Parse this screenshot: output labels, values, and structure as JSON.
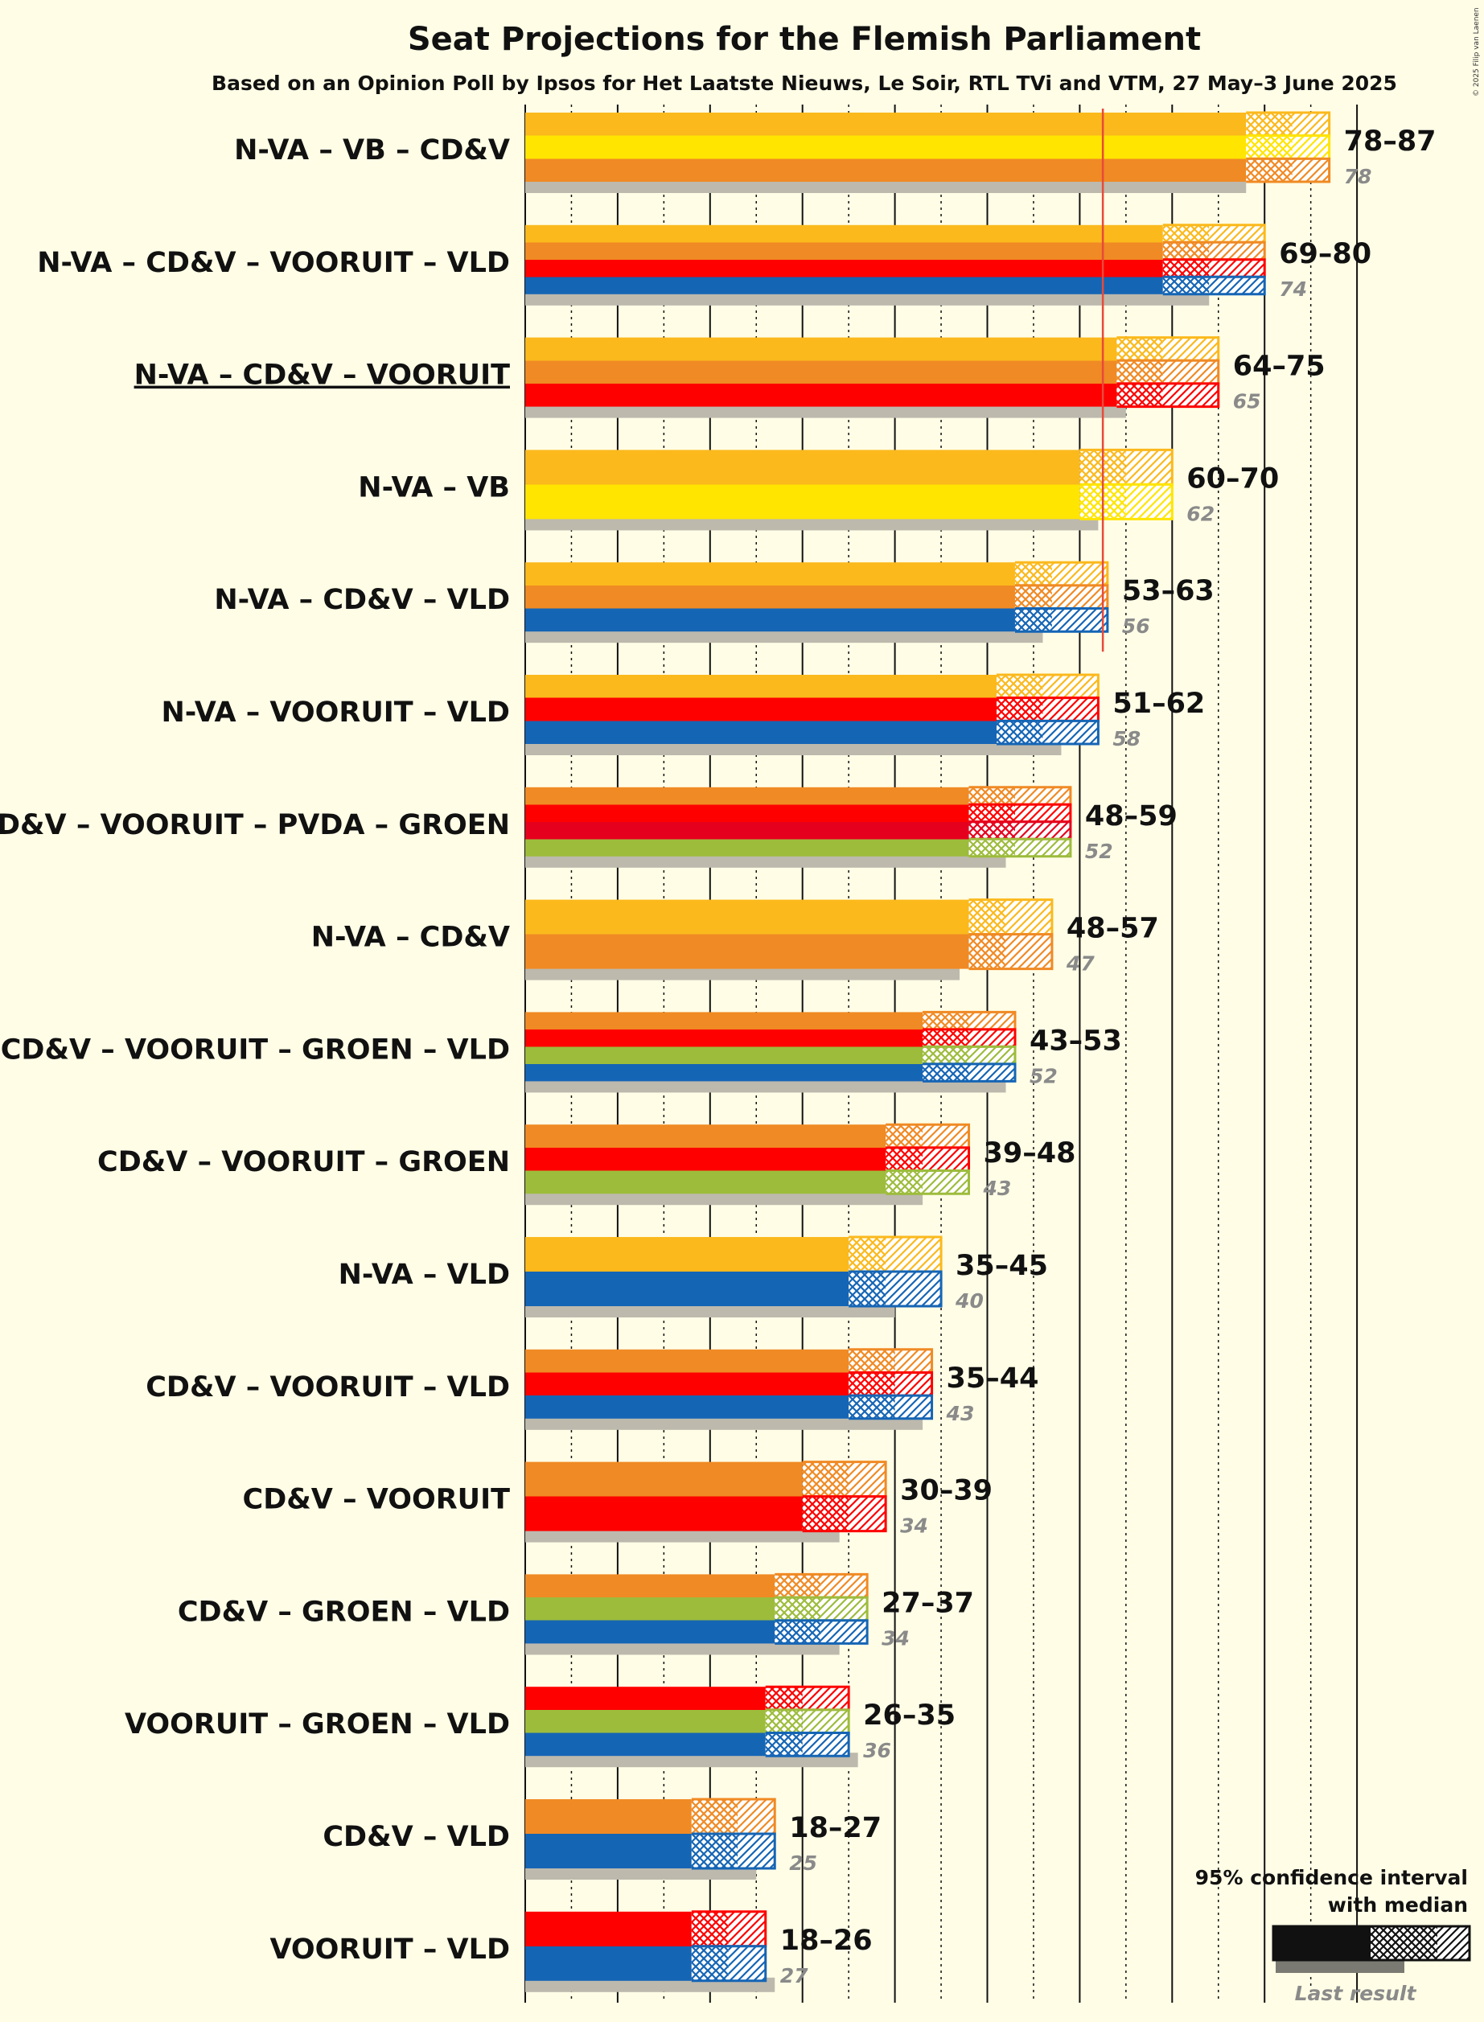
{
  "copyright": "© 2025 Filip van Laenen",
  "colors": {
    "background": "#fffde6",
    "N-VA": "#fbb91c",
    "VB": "#ffe500",
    "CD&V": "#f08a24",
    "VOORUIT": "#ff0000",
    "VLD": "#1565b5",
    "PVDA": "#e5001d",
    "GROEN": "#9dbc3c",
    "last_result": "#bdb9ad",
    "majority_line": "#e84a3a"
  },
  "legend": {
    "line1": "95% confidence interval",
    "line2": "with median",
    "last_result_label": "Last result"
  },
  "chart_data": {
    "type": "bar",
    "title": "Seat Projections for the Flemish Parliament",
    "subtitle": "Based on an Opinion Poll by Ipsos for Het Laatste Nieuws, Le Soir, RTL TVi and VTM, 27 May–3 June 2025",
    "x_range": [
      0,
      98
    ],
    "majority": 63,
    "grid_major_every": 10,
    "grid_minor_every": 5,
    "rows": [
      {
        "label": "N-VA – VB – CD&V",
        "parties": [
          "N-VA",
          "VB",
          "CD&V"
        ],
        "low": 78,
        "median": 83,
        "high": 87,
        "range_text": "78–87",
        "last": 78,
        "last_text": "78",
        "underline": false
      },
      {
        "label": "N-VA – CD&V – VOORUIT – VLD",
        "parties": [
          "N-VA",
          "CD&V",
          "VOORUIT",
          "VLD"
        ],
        "low": 69,
        "median": 74,
        "high": 80,
        "range_text": "69–80",
        "last": 74,
        "last_text": "74",
        "underline": false
      },
      {
        "label": "N-VA – CD&V – VOORUIT",
        "parties": [
          "N-VA",
          "CD&V",
          "VOORUIT"
        ],
        "low": 64,
        "median": 69,
        "high": 75,
        "range_text": "64–75",
        "last": 65,
        "last_text": "65",
        "underline": true
      },
      {
        "label": "N-VA – VB",
        "parties": [
          "N-VA",
          "VB"
        ],
        "low": 60,
        "median": 65,
        "high": 70,
        "range_text": "60–70",
        "last": 62,
        "last_text": "62",
        "underline": false
      },
      {
        "label": "N-VA – CD&V – VLD",
        "parties": [
          "N-VA",
          "CD&V",
          "VLD"
        ],
        "low": 53,
        "median": 57,
        "high": 63,
        "range_text": "53–63",
        "last": 56,
        "last_text": "56",
        "underline": false
      },
      {
        "label": "N-VA – VOORUIT – VLD",
        "parties": [
          "N-VA",
          "VOORUIT",
          "VLD"
        ],
        "low": 51,
        "median": 56,
        "high": 62,
        "range_text": "51–62",
        "last": 58,
        "last_text": "58",
        "underline": false
      },
      {
        "label": "CD&V – VOORUIT – PVDA – GROEN",
        "parties": [
          "CD&V",
          "VOORUIT",
          "PVDA",
          "GROEN"
        ],
        "low": 48,
        "median": 53,
        "high": 59,
        "range_text": "48–59",
        "last": 52,
        "last_text": "52",
        "underline": false
      },
      {
        "label": "N-VA – CD&V",
        "parties": [
          "N-VA",
          "CD&V"
        ],
        "low": 48,
        "median": 52,
        "high": 57,
        "range_text": "48–57",
        "last": 47,
        "last_text": "47",
        "underline": false
      },
      {
        "label": "CD&V – VOORUIT – GROEN – VLD",
        "parties": [
          "CD&V",
          "VOORUIT",
          "GROEN",
          "VLD"
        ],
        "low": 43,
        "median": 48,
        "high": 53,
        "range_text": "43–53",
        "last": 52,
        "last_text": "52",
        "underline": false
      },
      {
        "label": "CD&V – VOORUIT – GROEN",
        "parties": [
          "CD&V",
          "VOORUIT",
          "GROEN"
        ],
        "low": 39,
        "median": 43,
        "high": 48,
        "range_text": "39–48",
        "last": 43,
        "last_text": "43",
        "underline": false
      },
      {
        "label": "N-VA – VLD",
        "parties": [
          "N-VA",
          "VLD"
        ],
        "low": 35,
        "median": 39,
        "high": 45,
        "range_text": "35–45",
        "last": 40,
        "last_text": "40",
        "underline": false
      },
      {
        "label": "CD&V – VOORUIT – VLD",
        "parties": [
          "CD&V",
          "VOORUIT",
          "VLD"
        ],
        "low": 35,
        "median": 40,
        "high": 44,
        "range_text": "35–44",
        "last": 43,
        "last_text": "43",
        "underline": false
      },
      {
        "label": "CD&V – VOORUIT",
        "parties": [
          "CD&V",
          "VOORUIT"
        ],
        "low": 30,
        "median": 35,
        "high": 39,
        "range_text": "30–39",
        "last": 34,
        "last_text": "34",
        "underline": false
      },
      {
        "label": "CD&V – GROEN – VLD",
        "parties": [
          "CD&V",
          "GROEN",
          "VLD"
        ],
        "low": 27,
        "median": 32,
        "high": 37,
        "range_text": "27–37",
        "last": 34,
        "last_text": "34",
        "underline": false
      },
      {
        "label": "VOORUIT – GROEN – VLD",
        "parties": [
          "VOORUIT",
          "GROEN",
          "VLD"
        ],
        "low": 26,
        "median": 30,
        "high": 35,
        "range_text": "26–35",
        "last": 36,
        "last_text": "36",
        "underline": false
      },
      {
        "label": "CD&V – VLD",
        "parties": [
          "CD&V",
          "VLD"
        ],
        "low": 18,
        "median": 23,
        "high": 27,
        "range_text": "18–27",
        "last": 25,
        "last_text": "25",
        "underline": false
      },
      {
        "label": "VOORUIT – VLD",
        "parties": [
          "VOORUIT",
          "VLD"
        ],
        "low": 18,
        "median": 22,
        "high": 26,
        "range_text": "18–26",
        "last": 27,
        "last_text": "27",
        "underline": false
      }
    ]
  }
}
